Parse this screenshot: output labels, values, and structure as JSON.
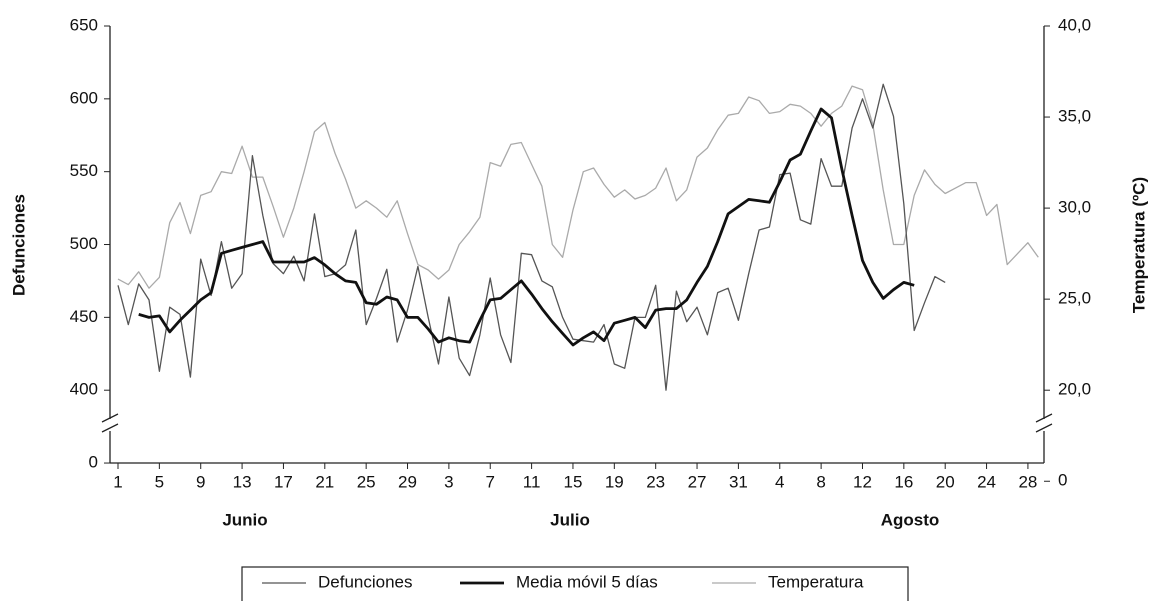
{
  "chart_data": {
    "type": "line",
    "y_label": "Defunciones",
    "y2_label": "Temperatura (ºC)",
    "categories": [
      "1",
      null,
      null,
      null,
      "5",
      null,
      null,
      null,
      "9",
      null,
      null,
      null,
      "13",
      null,
      null,
      null,
      "17",
      null,
      null,
      null,
      "21",
      null,
      null,
      null,
      "25",
      null,
      null,
      null,
      "29",
      null,
      null,
      null,
      "3",
      null,
      null,
      null,
      "7",
      null,
      null,
      null,
      "11",
      null,
      null,
      null,
      "15",
      null,
      null,
      null,
      "19",
      null,
      null,
      null,
      "23",
      null,
      null,
      null,
      "27",
      null,
      null,
      null,
      "31",
      null,
      null,
      null,
      "4",
      null,
      null,
      null,
      "8",
      null,
      null,
      null,
      "12",
      null,
      null,
      null,
      "16",
      null,
      null,
      null,
      "20",
      null,
      null,
      null,
      "24",
      null,
      null,
      null,
      "28",
      null
    ],
    "months": [
      "Junio",
      "Julio",
      "Agosto"
    ],
    "series": [
      {
        "name": "Defunciones",
        "color": "#555555",
        "width": 1.3,
        "values": [
          472,
          445,
          473,
          462,
          413,
          457,
          452,
          409,
          490,
          465,
          502,
          470,
          480,
          561,
          520,
          487,
          480,
          492,
          475,
          521,
          478,
          480,
          486,
          510,
          445,
          463,
          483,
          433,
          455,
          485,
          450,
          418,
          464,
          422,
          410,
          438,
          477,
          438,
          419,
          494,
          493,
          475,
          471,
          450,
          435,
          434,
          433,
          445,
          418,
          415,
          450,
          450,
          472,
          400,
          468,
          447,
          457,
          438,
          467,
          470,
          448,
          480,
          510,
          512,
          548,
          549,
          517,
          514,
          559,
          540,
          540,
          580,
          600,
          580,
          610,
          588,
          528,
          441,
          460,
          478,
          474,
          null,
          null,
          null,
          null,
          null,
          null,
          null,
          null,
          null
        ]
      },
      {
        "name": "Media móvil 5 días",
        "color": "#111111",
        "width": 2.8,
        "values": [
          null,
          null,
          452,
          450,
          451,
          440,
          448,
          455,
          462,
          467,
          494,
          496,
          498,
          500,
          502,
          488,
          488,
          488,
          488,
          491,
          486,
          480,
          475,
          474,
          460,
          459,
          464,
          462,
          450,
          450,
          442,
          433,
          436,
          434,
          433,
          448,
          462,
          463,
          469,
          475,
          466,
          456,
          447,
          439,
          431,
          436,
          440,
          434,
          446,
          448,
          450,
          443,
          455,
          456,
          456,
          462,
          474,
          485,
          502,
          521,
          526,
          531,
          530,
          529,
          543,
          558,
          562,
          578,
          593,
          587,
          552,
          520,
          489,
          474,
          463,
          469,
          474,
          472,
          null,
          null,
          null,
          null,
          null,
          null,
          null,
          null,
          null,
          null,
          null,
          null
        ]
      },
      {
        "name": "Temperatura",
        "color": "#aaaaaa",
        "width": 1.3,
        "axis": "y2",
        "values": [
          26.1,
          25.8,
          26.5,
          25.6,
          26.2,
          29.2,
          30.3,
          28.6,
          30.7,
          30.9,
          32.0,
          31.9,
          33.4,
          31.7,
          31.7,
          30.1,
          28.4,
          30.0,
          32.0,
          34.2,
          34.7,
          33.0,
          31.6,
          30.0,
          30.4,
          30.0,
          29.5,
          30.4,
          28.6,
          26.9,
          26.6,
          26.1,
          26.6,
          28.0,
          28.7,
          29.5,
          32.5,
          32.3,
          33.5,
          33.6,
          32.4,
          31.2,
          28.0,
          27.3,
          29.9,
          32.0,
          32.2,
          31.3,
          30.6,
          31.0,
          30.5,
          30.7,
          31.1,
          32.2,
          30.4,
          31.0,
          32.8,
          33.3,
          34.3,
          35.1,
          35.2,
          36.1,
          35.9,
          35.2,
          35.3,
          35.7,
          35.6,
          35.2,
          34.5,
          35.2,
          35.6,
          36.7,
          36.5,
          34.6,
          31.0,
          28.0,
          28.0,
          30.7,
          32.1,
          31.3,
          30.8,
          31.1,
          31.4,
          31.4,
          29.6,
          30.2,
          26.9,
          27.5,
          28.1,
          27.3
        ]
      }
    ],
    "ylim": [
      0,
      650
    ],
    "yticks": [
      0,
      400,
      450,
      500,
      550,
      600,
      650
    ],
    "y2lim": [
      0,
      40
    ],
    "y2ticks": [
      0,
      {
        "value": 20,
        "label": "20,0"
      },
      {
        "value": 25,
        "label": "25,0"
      },
      {
        "value": 30,
        "label": "30,0"
      },
      {
        "value": 35,
        "label": "35,0"
      },
      {
        "value": 40,
        "label": "40,0"
      }
    ],
    "axis_break": true,
    "legend": "bottom"
  }
}
